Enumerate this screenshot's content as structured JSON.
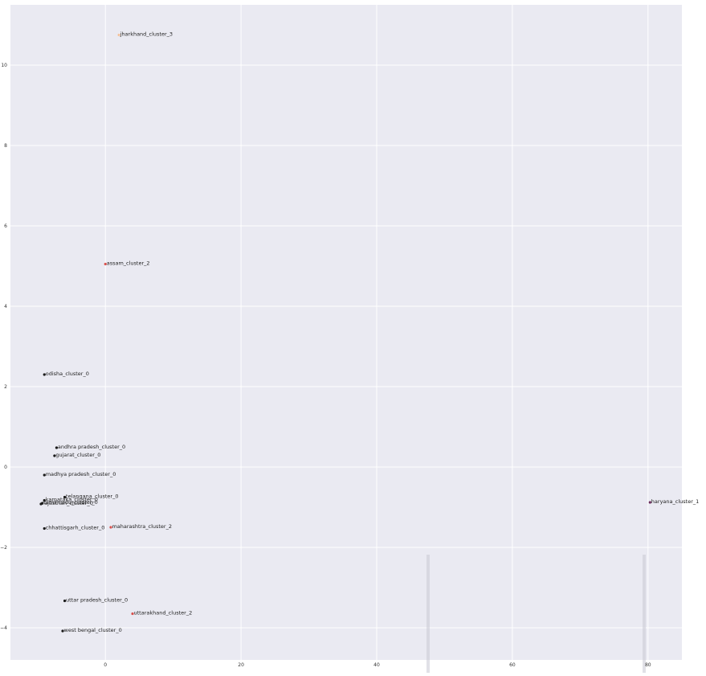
{
  "chart_data": {
    "type": "scatter",
    "title": "",
    "xlabel": "",
    "ylabel": "",
    "xlim": [
      -14,
      85
    ],
    "ylim": [
      -4.8,
      11.5
    ],
    "grid": true,
    "xticks": [
      0,
      20,
      40,
      60,
      80
    ],
    "yticks": [
      -4,
      -2,
      0,
      2,
      4,
      6,
      8,
      10
    ],
    "ytick_labels": [
      "−4",
      "−2",
      "0",
      "2",
      "4",
      "6",
      "8",
      "10"
    ],
    "colors": {
      "background": "#eaeaf2",
      "grid": "#ffffff",
      "cluster_0": "#1a1a1a",
      "cluster_1": "#6b2d5c",
      "cluster_2": "#d9534f",
      "cluster_3": "#f2c29e"
    },
    "points": [
      {
        "label": "jharkhand_cluster_3",
        "x": 2.0,
        "y": 10.75,
        "cluster": 3
      },
      {
        "label": "assam_cluster_2",
        "x": 0.0,
        "y": 5.05,
        "cluster": 2
      },
      {
        "label": "odisha_cluster_0",
        "x": -9.0,
        "y": 2.3,
        "cluster": 0
      },
      {
        "label": "andhra pradesh_cluster_0",
        "x": -7.2,
        "y": 0.48,
        "cluster": 0
      },
      {
        "label": "gujarat_cluster_0",
        "x": -7.5,
        "y": 0.28,
        "cluster": 0
      },
      {
        "label": "madhya pradesh_cluster_0",
        "x": -9.0,
        "y": -0.2,
        "cluster": 0
      },
      {
        "label": "telangana_cluster_0",
        "x": -6.0,
        "y": -0.75,
        "cluster": 0
      },
      {
        "label": "karnataka_cluster_0",
        "x": -9.0,
        "y": -0.83,
        "cluster": 0
      },
      {
        "label": "rajasthan_cluster_0",
        "x": -9.5,
        "y": -0.92,
        "cluster": 0
      },
      {
        "label": "tamil nadu_cluster_0",
        "x": -9.3,
        "y": -0.9,
        "cluster": 0
      },
      {
        "label": "haryana_cluster_1",
        "x": 80.3,
        "y": -0.88,
        "cluster": 1
      },
      {
        "label": "chhattisgarh_cluster_0",
        "x": -9.0,
        "y": -1.53,
        "cluster": 0
      },
      {
        "label": "maharashtra_cluster_2",
        "x": 0.8,
        "y": -1.5,
        "cluster": 2
      },
      {
        "label": "uttar pradesh_cluster_0",
        "x": -6.0,
        "y": -3.33,
        "cluster": 0
      },
      {
        "label": "uttarakhand_cluster_2",
        "x": 4.0,
        "y": -3.65,
        "cluster": 2
      },
      {
        "label": "west bengal_cluster_0",
        "x": -6.3,
        "y": -4.08,
        "cluster": 0
      }
    ]
  }
}
